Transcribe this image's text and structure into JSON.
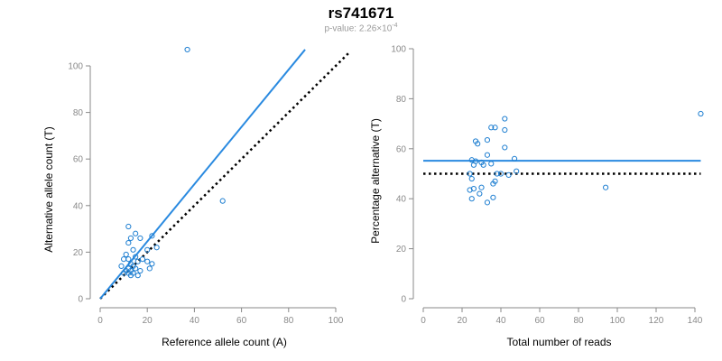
{
  "header": {
    "title": "rs741671",
    "subtitle_prefix": "p-value: 2.26×10",
    "subtitle_exponent": "-4"
  },
  "colors": {
    "points": "#1f7fd1",
    "fit": "#2a8ae0",
    "reference": "#000000",
    "axis": "#888888"
  },
  "chart_data": [
    {
      "type": "scatter",
      "xlabel": "Reference allele count (A)",
      "ylabel": "Alternative allele count (T)",
      "xlim": [
        0,
        100
      ],
      "ylim": [
        0,
        100
      ],
      "x_ticks": [
        0,
        20,
        40,
        60,
        80,
        100
      ],
      "y_ticks": [
        0,
        20,
        40,
        60,
        80,
        100
      ],
      "fit_line": {
        "x": [
          0,
          87
        ],
        "y": [
          0,
          107
        ],
        "style": "solid"
      },
      "reference_line": {
        "x": [
          0,
          106
        ],
        "y": [
          0,
          106
        ],
        "style": "dotted"
      },
      "points": [
        {
          "x": 37,
          "y": 107
        },
        {
          "x": 52,
          "y": 42
        },
        {
          "x": 12,
          "y": 31
        },
        {
          "x": 15,
          "y": 28
        },
        {
          "x": 12,
          "y": 24
        },
        {
          "x": 13,
          "y": 26
        },
        {
          "x": 17,
          "y": 26
        },
        {
          "x": 22,
          "y": 27
        },
        {
          "x": 24,
          "y": 22
        },
        {
          "x": 20,
          "y": 21
        },
        {
          "x": 14,
          "y": 21
        },
        {
          "x": 11,
          "y": 19
        },
        {
          "x": 10,
          "y": 17
        },
        {
          "x": 12,
          "y": 17
        },
        {
          "x": 15,
          "y": 18
        },
        {
          "x": 16,
          "y": 16
        },
        {
          "x": 18,
          "y": 17
        },
        {
          "x": 20,
          "y": 16
        },
        {
          "x": 22,
          "y": 15
        },
        {
          "x": 13,
          "y": 15
        },
        {
          "x": 14,
          "y": 14
        },
        {
          "x": 12,
          "y": 13
        },
        {
          "x": 11,
          "y": 12
        },
        {
          "x": 13,
          "y": 12
        },
        {
          "x": 15,
          "y": 13
        },
        {
          "x": 17,
          "y": 12
        },
        {
          "x": 14,
          "y": 11
        },
        {
          "x": 12,
          "y": 11
        },
        {
          "x": 16,
          "y": 10
        },
        {
          "x": 21,
          "y": 13
        },
        {
          "x": 9,
          "y": 14
        },
        {
          "x": 13,
          "y": 10
        },
        {
          "x": 10,
          "y": 11
        }
      ]
    },
    {
      "type": "scatter",
      "xlabel": "Total number of reads",
      "ylabel": "Percentage alternative (T)",
      "xlim": [
        0,
        140
      ],
      "ylim": [
        0,
        100
      ],
      "x_ticks": [
        0,
        20,
        40,
        60,
        80,
        100,
        120,
        140
      ],
      "y_ticks": [
        0,
        20,
        40,
        60,
        80,
        100
      ],
      "fit_line": {
        "x": [
          0,
          143
        ],
        "y": [
          55.2,
          55.2
        ],
        "style": "solid"
      },
      "reference_line": {
        "x": [
          0,
          143
        ],
        "y": [
          50,
          50
        ],
        "style": "dotted"
      },
      "points": [
        {
          "x": 143,
          "y": 74
        },
        {
          "x": 94,
          "y": 44.5
        },
        {
          "x": 42,
          "y": 72
        },
        {
          "x": 35,
          "y": 68.5
        },
        {
          "x": 37,
          "y": 68.5
        },
        {
          "x": 42,
          "y": 67.5
        },
        {
          "x": 33,
          "y": 63.5
        },
        {
          "x": 27,
          "y": 63
        },
        {
          "x": 28,
          "y": 62
        },
        {
          "x": 42,
          "y": 60.5
        },
        {
          "x": 33,
          "y": 57.5
        },
        {
          "x": 25,
          "y": 55.5
        },
        {
          "x": 47,
          "y": 56
        },
        {
          "x": 27,
          "y": 55
        },
        {
          "x": 30,
          "y": 54.5
        },
        {
          "x": 35,
          "y": 54
        },
        {
          "x": 26,
          "y": 53.5
        },
        {
          "x": 31,
          "y": 53.5
        },
        {
          "x": 48,
          "y": 51
        },
        {
          "x": 40,
          "y": 50
        },
        {
          "x": 24,
          "y": 50
        },
        {
          "x": 38,
          "y": 50
        },
        {
          "x": 44,
          "y": 49.5
        },
        {
          "x": 25,
          "y": 48
        },
        {
          "x": 37,
          "y": 47
        },
        {
          "x": 36,
          "y": 46
        },
        {
          "x": 30,
          "y": 44.5
        },
        {
          "x": 24,
          "y": 43.5
        },
        {
          "x": 26,
          "y": 44
        },
        {
          "x": 29,
          "y": 42
        },
        {
          "x": 25,
          "y": 40
        },
        {
          "x": 36,
          "y": 40.5
        },
        {
          "x": 33,
          "y": 38.5
        }
      ]
    }
  ]
}
